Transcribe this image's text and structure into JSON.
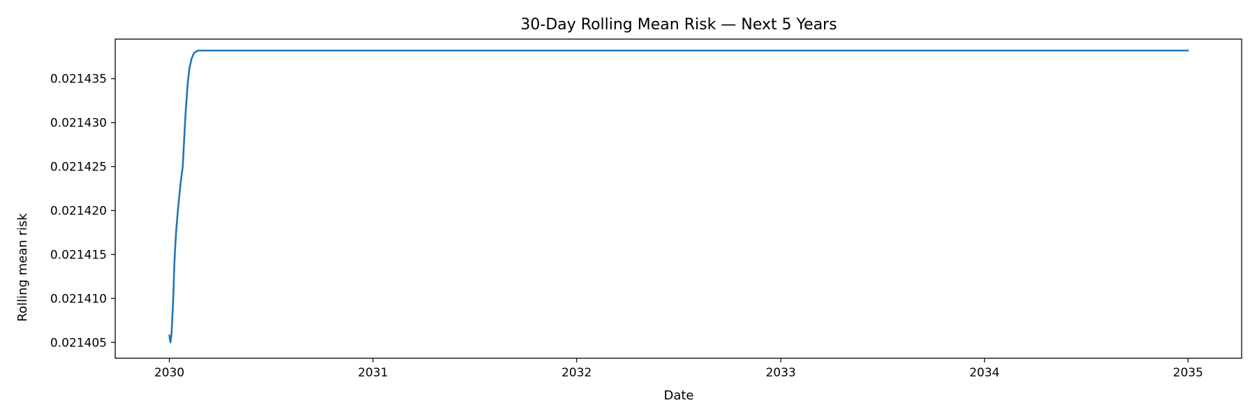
{
  "chart_data": {
    "type": "line",
    "title": "30-Day Rolling Mean Risk — Next 5 Years",
    "xlabel": "Date",
    "ylabel": "Rolling mean risk",
    "xlim": [
      "2029-09-26",
      "2035-04-07"
    ],
    "ylim": [
      0.0214032,
      0.0214395
    ],
    "x_ticks": [
      "2030-01-01",
      "2031-01-01",
      "2032-01-01",
      "2033-01-01",
      "2034-01-01",
      "2035-01-01"
    ],
    "x_tick_labels": [
      "2030",
      "2031",
      "2032",
      "2033",
      "2034",
      "2035"
    ],
    "y_ticks": [
      0.021405,
      0.02141,
      0.021415,
      0.02142,
      0.021425,
      0.02143,
      0.021435
    ],
    "y_tick_labels": [
      "0.021405",
      "0.021410",
      "0.021415",
      "0.021420",
      "0.021425",
      "0.021430",
      "0.021435"
    ],
    "grid": false,
    "legend": "none",
    "series": [
      {
        "color": "#1f77b4",
        "x": [
          "2030-01-01",
          "2030-01-03",
          "2030-01-05",
          "2030-01-08",
          "2030-01-10",
          "2030-01-13",
          "2030-01-17",
          "2030-01-21",
          "2030-01-25",
          "2030-01-30",
          "2030-02-03",
          "2030-02-06",
          "2030-02-10",
          "2030-02-14",
          "2030-02-18",
          "2030-02-22",
          "2030-02-26",
          "2030-03-05",
          "2030-03-15",
          "2030-04-01",
          "2031-01-01",
          "2032-01-01",
          "2033-01-01",
          "2034-01-01",
          "2035-01-01"
        ],
        "y": [
          0.0214058,
          0.021405,
          0.021406,
          0.02141,
          0.021414,
          0.0214175,
          0.0214205,
          0.021423,
          0.021425,
          0.021431,
          0.0214345,
          0.0214362,
          0.0214373,
          0.0214379,
          0.0214381,
          0.0214382,
          0.0214382,
          0.0214382,
          0.0214382,
          0.0214382,
          0.0214382,
          0.0214382,
          0.0214382,
          0.0214382,
          0.0214382
        ]
      }
    ]
  }
}
